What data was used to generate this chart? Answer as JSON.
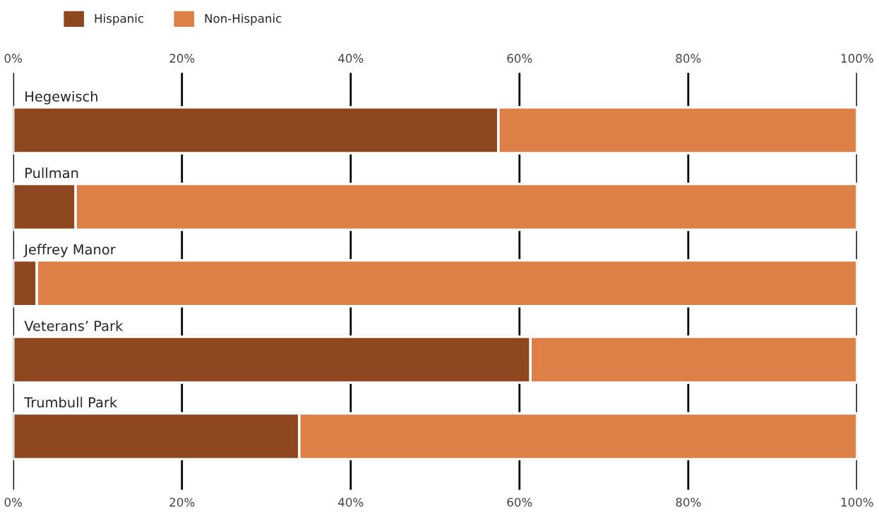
{
  "chart_data": {
    "type": "bar",
    "orientation": "horizontal",
    "stacked": true,
    "categories": [
      "Hegewisch",
      "Pullman",
      "Jeffrey Manor",
      "Veterans’ Park",
      "Trumbull Park"
    ],
    "series": [
      {
        "name": "Hispanic",
        "color": "#8f4720",
        "values": [
          57.5,
          7.4,
          2.8,
          61.3,
          33.9
        ]
      },
      {
        "name": "Non-Hispanic",
        "color": "#dc8047",
        "values": [
          42.5,
          92.6,
          97.2,
          38.7,
          66.1
        ]
      }
    ],
    "xlim": [
      0,
      100
    ],
    "xticks": [
      {
        "value": 0,
        "label": "0%"
      },
      {
        "value": 20,
        "label": "20%"
      },
      {
        "value": 40,
        "label": "40%"
      },
      {
        "value": 60,
        "label": "60%"
      },
      {
        "value": 80,
        "label": "80%"
      },
      {
        "value": 100,
        "label": "100%"
      }
    ],
    "x2lim": [
      0,
      100
    ],
    "x2ticks": [
      {
        "value": 0,
        "label": "0%"
      },
      {
        "value": 20,
        "label": "20%"
      },
      {
        "value": 40,
        "label": "40%"
      },
      {
        "value": 60,
        "label": "60%"
      },
      {
        "value": 80,
        "label": "80%"
      },
      {
        "value": 100,
        "label": "100%"
      }
    ],
    "grid": "x",
    "legend": "top left"
  }
}
